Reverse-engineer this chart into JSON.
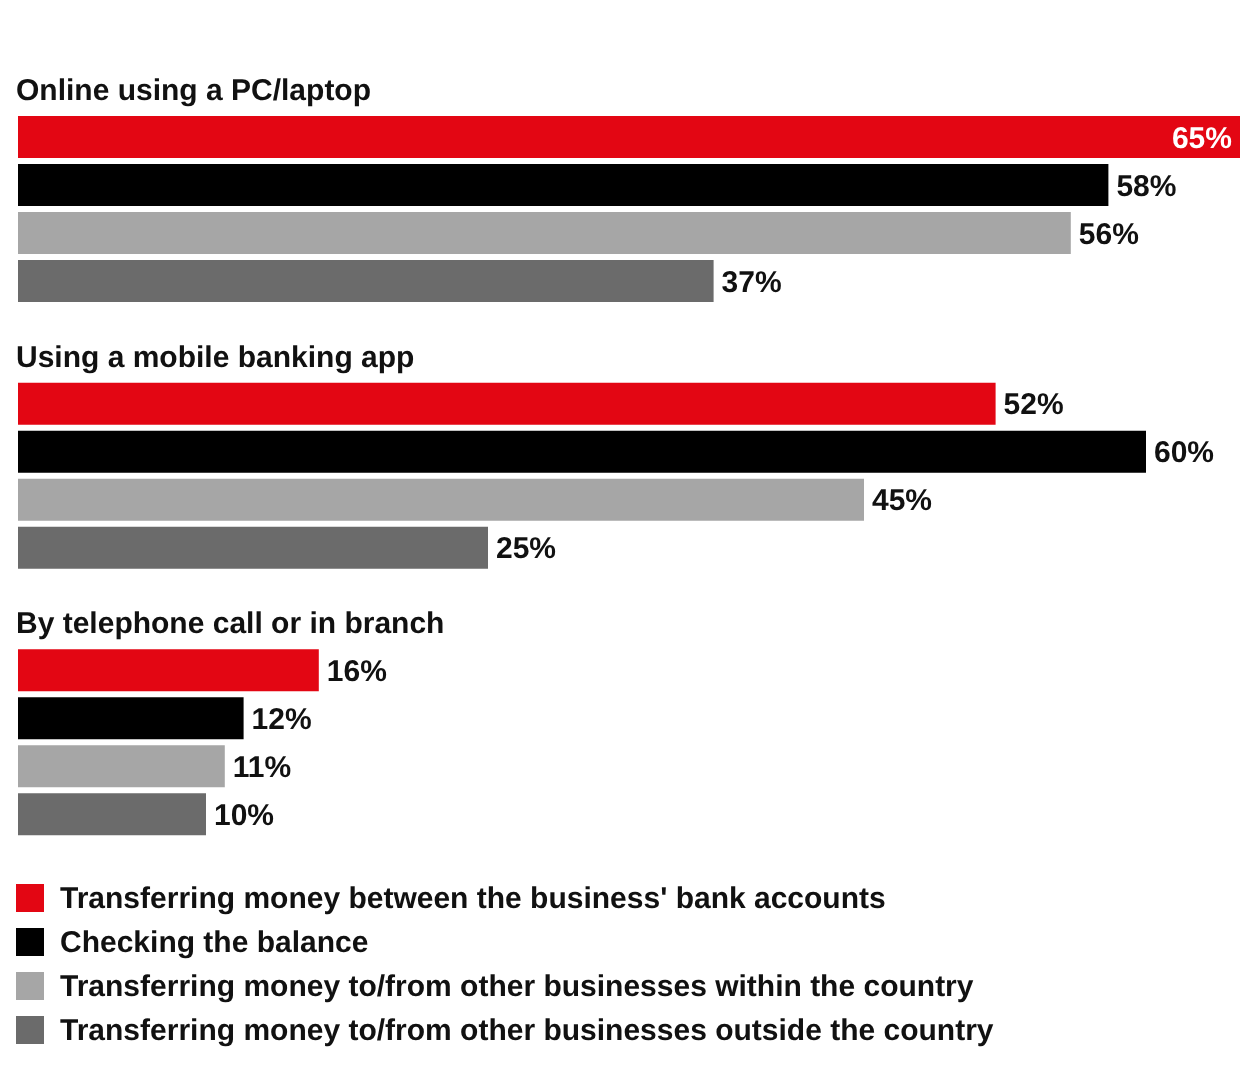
{
  "chart_data": {
    "type": "bar",
    "orientation": "horizontal",
    "categories": [
      "Online using a PC/laptop",
      "Using a mobile banking app",
      "By telephone call or in branch"
    ],
    "legend": "bottom",
    "series": [
      {
        "name": "Transferring money between the business' bank accounts",
        "color": "#e30613",
        "values": [
          65,
          52,
          16
        ],
        "value_labels": [
          "65%",
          "52%",
          "16%"
        ]
      },
      {
        "name": "Checking the balance",
        "color": "#000000",
        "values": [
          58,
          60,
          12
        ],
        "value_labels": [
          "58%",
          "60%",
          "12%"
        ]
      },
      {
        "name": "Transferring money to/from other businesses within the country",
        "color": "#a6a6a6",
        "values": [
          56,
          45,
          11
        ],
        "value_labels": [
          "56%",
          "45%",
          "11%"
        ]
      },
      {
        "name": "Transferring money to/from other businesses outside the country",
        "color": "#6b6b6b",
        "values": [
          37,
          25,
          10
        ],
        "value_labels": [
          "37%",
          "25%",
          "10%"
        ]
      }
    ]
  }
}
